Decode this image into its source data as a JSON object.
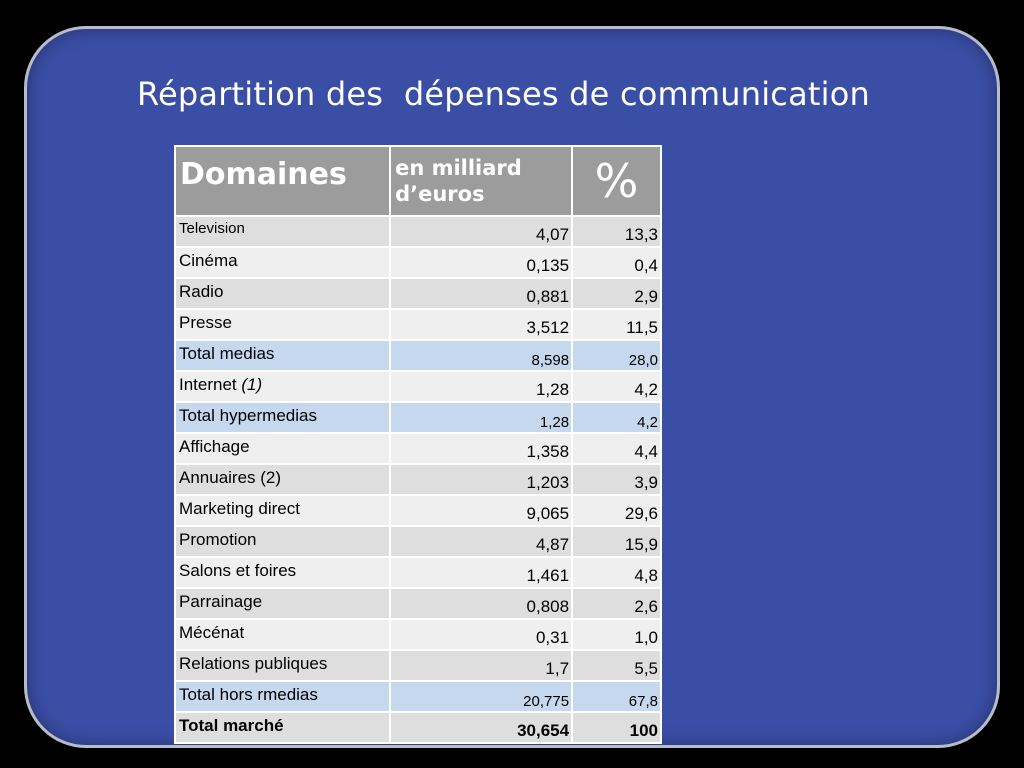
{
  "title": "Répartition des  dépenses de communication",
  "table": {
    "headers": {
      "domaines": "Domaines",
      "valeur": "en milliard d’euros",
      "pct": "%"
    },
    "rows": [
      {
        "label": "Television",
        "value": "4,07",
        "pct": "13,3",
        "kind": "odd",
        "small": true
      },
      {
        "label": "Cinéma",
        "value": "0,135",
        "pct": "0,4",
        "kind": "even"
      },
      {
        "label": "Radio",
        "value": "0,881",
        "pct": "2,9",
        "kind": "odd"
      },
      {
        "label": "Presse",
        "value": "3,512",
        "pct": "11,5",
        "kind": "even"
      },
      {
        "label": "Total medias",
        "value": "8,598",
        "pct": "28,0",
        "kind": "tot"
      },
      {
        "label": "Internet ",
        "note": "(1)",
        "value": "1,28",
        "pct": "4,2",
        "kind": "even"
      },
      {
        "label": "Total hypermedias",
        "value": "1,28",
        "pct": "4,2",
        "kind": "tot"
      },
      {
        "label": "Affichage",
        "value": "1,358",
        "pct": "4,4",
        "kind": "even"
      },
      {
        "label": "Annuaires (2)",
        "value": "1,203",
        "pct": "3,9",
        "kind": "odd"
      },
      {
        "label": "Marketing direct",
        "value": "9,065",
        "pct": "29,6",
        "kind": "even"
      },
      {
        "label": "Promotion",
        "value": "4,87",
        "pct": "15,9",
        "kind": "odd"
      },
      {
        "label": "Salons et foires",
        "value": "1,461",
        "pct": "4,8",
        "kind": "even"
      },
      {
        "label": "Parrainage",
        "value": "0,808",
        "pct": "2,6",
        "kind": "odd"
      },
      {
        "label": "Mécénat",
        "value": "0,31",
        "pct": "1,0",
        "kind": "even"
      },
      {
        "label": "Relations publiques",
        "value": "1,7",
        "pct": "5,5",
        "kind": "odd"
      },
      {
        "label": "Total hors rmedias",
        "value": "20,775",
        "pct": "67,8",
        "kind": "tot"
      },
      {
        "label": "Total marché",
        "value": "30,654",
        "pct": "100",
        "kind": "final"
      }
    ]
  },
  "colors": {
    "slide_background": "#3a4ea6",
    "header_background": "#9c9c9c",
    "total_row_background": "#c6d8ee"
  }
}
